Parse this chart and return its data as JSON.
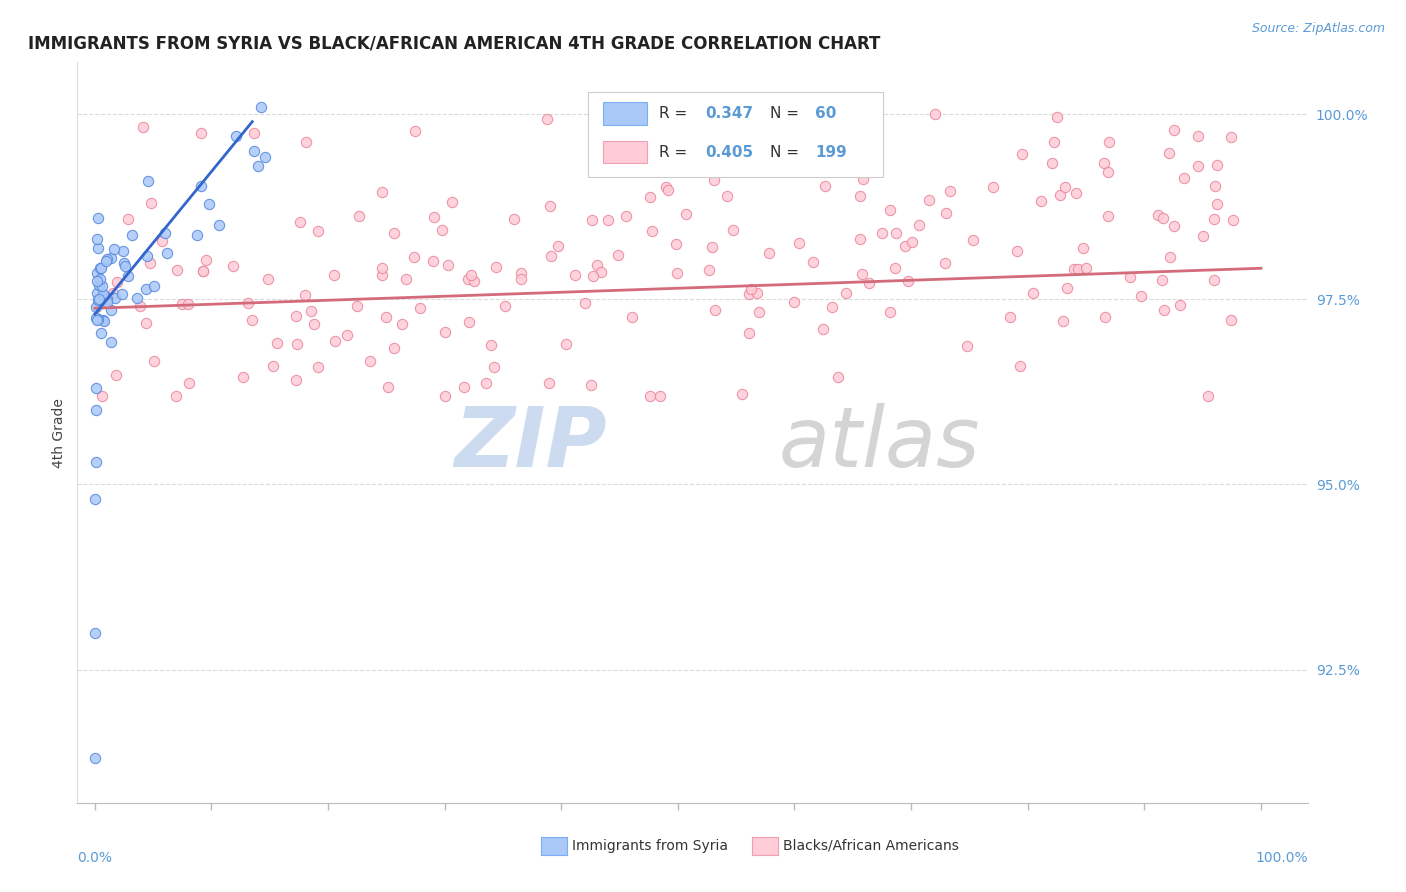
{
  "title": "IMMIGRANTS FROM SYRIA VS BLACK/AFRICAN AMERICAN 4TH GRADE CORRELATION CHART",
  "source_text": "Source: ZipAtlas.com",
  "ylabel": "4th Grade",
  "legend_box_items": [
    {
      "color": "#aac8f8",
      "border": "#7baff5",
      "R": "0.347",
      "N": "60"
    },
    {
      "color": "#ffccd8",
      "border": "#f0a0b0",
      "R": "0.405",
      "N": "199"
    }
  ],
  "legend_bottom": [
    {
      "color": "#aac8f8",
      "border": "#7baff5",
      "label": "Immigrants from Syria"
    },
    {
      "color": "#ffccd8",
      "border": "#f0a0b0",
      "label": "Blacks/African Americans"
    }
  ],
  "blue_line_color": "#3366cc",
  "pink_line_color": "#d46b7a",
  "blue_scatter_facecolor": "#aac8f8",
  "blue_scatter_edgecolor": "#5588dd",
  "pink_scatter_facecolor": "#ffccd8",
  "pink_scatter_edgecolor": "#e8889a",
  "axis_color": "#5b9bd5",
  "grid_color": "#cccccc",
  "right_yticks": [
    1.0,
    0.975,
    0.95,
    0.925
  ],
  "right_yticklabels": [
    "100.0%",
    "97.5%",
    "95.0%",
    "92.5%"
  ],
  "ylim_low": 0.907,
  "ylim_high": 1.007,
  "xlim_low": -0.015,
  "xlim_high": 1.04,
  "title_fontsize": 12,
  "watermark_zip_color": "#c8d8f0",
  "watermark_atlas_color": "#d0d0d0"
}
